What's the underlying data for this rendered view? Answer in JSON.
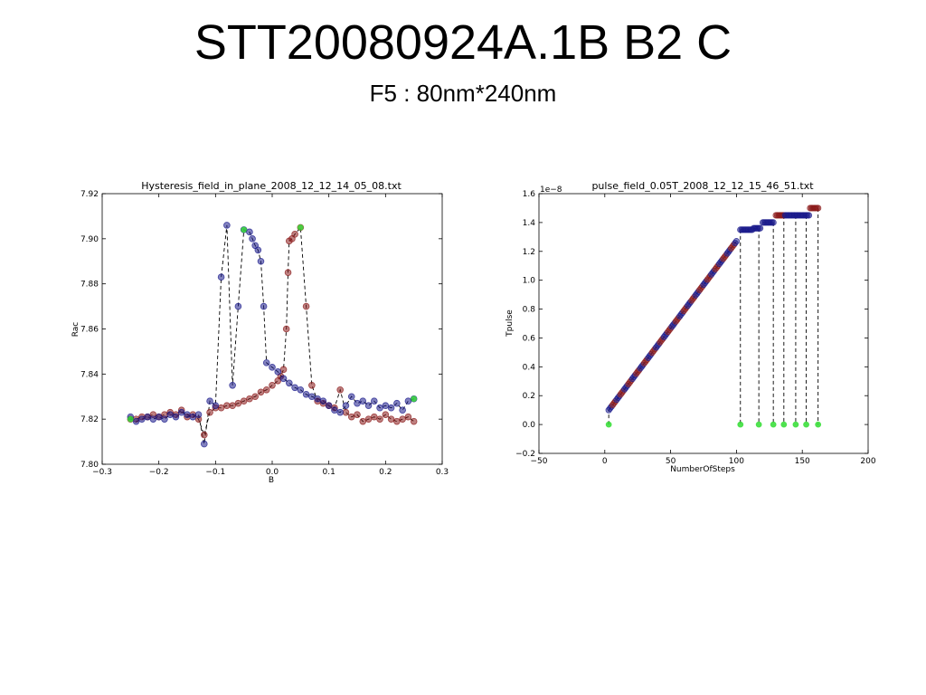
{
  "slide": {
    "title": "STT20080924A.1B B2 C",
    "subtitle": "F5 : 80nm*240nm"
  },
  "chart_data": [
    {
      "type": "scatter",
      "title": "Hysteresis_field_in_plane_2008_12_12_14_05_08.txt",
      "xlabel": "B",
      "ylabel": "Rac",
      "xlim": [
        -0.3,
        0.3
      ],
      "ylim": [
        7.8,
        7.92
      ],
      "xticks": [
        "−0.3",
        "−0.2",
        "−0.1",
        "0.0",
        "0.1",
        "0.2",
        "0.3"
      ],
      "yticks": [
        "7.80",
        "7.82",
        "7.84",
        "7.86",
        "7.88",
        "7.90",
        "7.92"
      ],
      "xtick_values": [
        -0.3,
        -0.2,
        -0.1,
        0.0,
        0.1,
        0.2,
        0.3
      ],
      "ytick_values": [
        7.8,
        7.82,
        7.84,
        7.86,
        7.88,
        7.9,
        7.92
      ],
      "grid": false,
      "colors": {
        "sweep_up": "#8b1a1a",
        "sweep_down": "#1a1a8b",
        "endpoint": "#33dd33",
        "line": "#000000"
      },
      "series": [
        {
          "sweep": "up",
          "points": [
            [
              -0.25,
              7.82
            ],
            [
              -0.24,
              7.82
            ],
            [
              -0.23,
              7.821
            ],
            [
              -0.22,
              7.821
            ],
            [
              -0.21,
              7.822
            ],
            [
              -0.2,
              7.821
            ],
            [
              -0.19,
              7.822
            ],
            [
              -0.18,
              7.823
            ],
            [
              -0.17,
              7.822
            ],
            [
              -0.16,
              7.824
            ],
            [
              -0.15,
              7.821
            ],
            [
              -0.14,
              7.822
            ],
            [
              -0.13,
              7.82
            ],
            [
              -0.12,
              7.813
            ],
            [
              -0.11,
              7.823
            ],
            [
              -0.1,
              7.825
            ],
            [
              -0.09,
              7.825
            ],
            [
              -0.08,
              7.826
            ],
            [
              -0.07,
              7.826
            ],
            [
              -0.06,
              7.827
            ],
            [
              -0.05,
              7.828
            ],
            [
              -0.04,
              7.829
            ],
            [
              -0.03,
              7.83
            ],
            [
              -0.02,
              7.832
            ],
            [
              -0.01,
              7.833
            ],
            [
              0.0,
              7.835
            ],
            [
              0.01,
              7.837
            ],
            [
              0.015,
              7.839
            ],
            [
              0.02,
              7.842
            ],
            [
              0.025,
              7.86
            ],
            [
              0.028,
              7.885
            ],
            [
              0.03,
              7.899
            ],
            [
              0.035,
              7.9
            ],
            [
              0.04,
              7.902
            ],
            [
              0.05,
              7.905
            ],
            [
              0.06,
              7.87
            ],
            [
              0.07,
              7.835
            ],
            [
              0.08,
              7.828
            ],
            [
              0.09,
              7.827
            ],
            [
              0.1,
              7.826
            ],
            [
              0.11,
              7.825
            ],
            [
              0.12,
              7.833
            ],
            [
              0.13,
              7.823
            ],
            [
              0.14,
              7.821
            ],
            [
              0.15,
              7.822
            ],
            [
              0.16,
              7.819
            ],
            [
              0.17,
              7.82
            ],
            [
              0.18,
              7.821
            ],
            [
              0.19,
              7.82
            ],
            [
              0.2,
              7.822
            ],
            [
              0.21,
              7.82
            ],
            [
              0.22,
              7.819
            ],
            [
              0.23,
              7.82
            ],
            [
              0.24,
              7.821
            ],
            [
              0.25,
              7.819
            ]
          ]
        },
        {
          "sweep": "down",
          "points": [
            [
              0.25,
              7.829
            ],
            [
              0.24,
              7.828
            ],
            [
              0.23,
              7.824
            ],
            [
              0.22,
              7.827
            ],
            [
              0.21,
              7.825
            ],
            [
              0.2,
              7.826
            ],
            [
              0.19,
              7.825
            ],
            [
              0.18,
              7.828
            ],
            [
              0.17,
              7.826
            ],
            [
              0.16,
              7.828
            ],
            [
              0.15,
              7.827
            ],
            [
              0.14,
              7.83
            ],
            [
              0.13,
              7.826
            ],
            [
              0.12,
              7.823
            ],
            [
              0.11,
              7.824
            ],
            [
              0.1,
              7.826
            ],
            [
              0.09,
              7.828
            ],
            [
              0.08,
              7.829
            ],
            [
              0.07,
              7.83
            ],
            [
              0.06,
              7.831
            ],
            [
              0.05,
              7.833
            ],
            [
              0.04,
              7.834
            ],
            [
              0.03,
              7.836
            ],
            [
              0.02,
              7.838
            ],
            [
              0.01,
              7.841
            ],
            [
              0.0,
              7.843
            ],
            [
              -0.01,
              7.845
            ],
            [
              -0.015,
              7.87
            ],
            [
              -0.02,
              7.89
            ],
            [
              -0.025,
              7.895
            ],
            [
              -0.03,
              7.897
            ],
            [
              -0.035,
              7.9
            ],
            [
              -0.04,
              7.903
            ],
            [
              -0.05,
              7.904
            ],
            [
              -0.06,
              7.87
            ],
            [
              -0.07,
              7.835
            ],
            [
              -0.08,
              7.906
            ],
            [
              -0.09,
              7.883
            ],
            [
              -0.1,
              7.826
            ],
            [
              -0.11,
              7.828
            ],
            [
              -0.12,
              7.809
            ],
            [
              -0.13,
              7.822
            ],
            [
              -0.14,
              7.821
            ],
            [
              -0.15,
              7.822
            ],
            [
              -0.16,
              7.823
            ],
            [
              -0.17,
              7.821
            ],
            [
              -0.18,
              7.822
            ],
            [
              -0.19,
              7.82
            ],
            [
              -0.2,
              7.821
            ],
            [
              -0.21,
              7.82
            ],
            [
              -0.22,
              7.821
            ],
            [
              -0.23,
              7.82
            ],
            [
              -0.24,
              7.819
            ],
            [
              -0.25,
              7.821
            ]
          ]
        }
      ],
      "endpoints": [
        [
          -0.25,
          7.82
        ],
        [
          0.25,
          7.829
        ],
        [
          -0.05,
          7.904
        ],
        [
          0.05,
          7.905
        ]
      ]
    },
    {
      "type": "scatter",
      "title": "pulse_field_0.05T_2008_12_12_15_46_51.txt",
      "xlabel": "NumberOfSteps",
      "ylabel": "Tpulse",
      "y_multiplier": "1e−8",
      "xlim": [
        -50,
        200
      ],
      "ylim": [
        -0.2,
        1.6
      ],
      "xticks": [
        "−50",
        "0",
        "50",
        "100",
        "150",
        "200"
      ],
      "yticks": [
        "−0.2",
        "0.0",
        "0.2",
        "0.4",
        "0.6",
        "0.8",
        "1.0",
        "1.2",
        "1.4",
        "1.6"
      ],
      "xtick_values": [
        -50,
        0,
        50,
        100,
        150,
        200
      ],
      "ytick_values": [
        -0.2,
        0.0,
        0.2,
        0.4,
        0.6,
        0.8,
        1.0,
        1.2,
        1.4,
        1.6
      ],
      "grid": false,
      "colors": {
        "ramp": "#1a1a8b",
        "plateau_red": "#8b1a1a",
        "zero": "#33dd33",
        "line": "#000000"
      },
      "ramp": {
        "x_start": 3,
        "x_end": 100,
        "y_start": 0.1,
        "y_end": 1.27
      },
      "plateaus": [
        {
          "x_start": 103,
          "x_end": 112,
          "y": 1.35,
          "reset_x": 103
        },
        {
          "x_start": 113,
          "x_end": 118,
          "y": 1.36,
          "reset_x": 117
        },
        {
          "x_start": 120,
          "x_end": 128,
          "y": 1.4,
          "reset_x": 128
        },
        {
          "x_start": 130,
          "x_end": 136,
          "y": 1.45,
          "reset_x": 136
        },
        {
          "x_start": 137,
          "x_end": 145,
          "y": 1.45,
          "reset_x": 145
        },
        {
          "x_start": 146,
          "x_end": 155,
          "y": 1.45,
          "reset_x": 153
        },
        {
          "x_start": 156,
          "x_end": 162,
          "y": 1.5,
          "reset_x": 162
        }
      ],
      "zero_points_x": [
        3,
        103,
        117,
        128,
        136,
        145,
        153,
        162
      ]
    }
  ]
}
